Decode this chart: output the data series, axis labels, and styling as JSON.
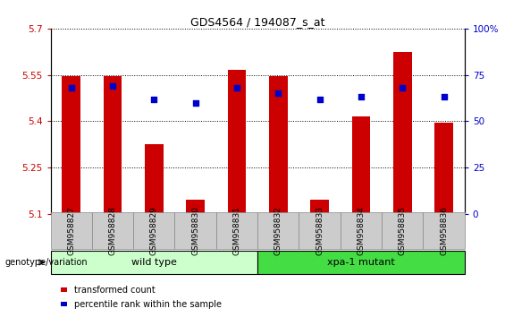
{
  "title": "GDS4564 / 194087_s_at",
  "samples": [
    "GSM958827",
    "GSM958828",
    "GSM958829",
    "GSM958830",
    "GSM958831",
    "GSM958832",
    "GSM958833",
    "GSM958834",
    "GSM958835",
    "GSM958836"
  ],
  "transformed_count": [
    5.545,
    5.545,
    5.325,
    5.145,
    5.565,
    5.545,
    5.145,
    5.415,
    5.625,
    5.395
  ],
  "percentile_rank": [
    68,
    69,
    62,
    60,
    68,
    65,
    62,
    63,
    68,
    63
  ],
  "ylim_left": [
    5.1,
    5.7
  ],
  "ylim_right": [
    0,
    100
  ],
  "yticks_left": [
    5.1,
    5.25,
    5.4,
    5.55,
    5.7
  ],
  "yticks_right": [
    0,
    25,
    50,
    75,
    100
  ],
  "ytick_labels_left": [
    "5.1",
    "5.25",
    "5.4",
    "5.55",
    "5.7"
  ],
  "ytick_labels_right": [
    "0",
    "25",
    "50",
    "75",
    "100%"
  ],
  "bar_color": "#cc0000",
  "dot_color": "#0000cc",
  "bar_bottom": 5.1,
  "dot_size": 22,
  "groups": [
    {
      "label": "wild type",
      "start": 0,
      "end": 5,
      "color": "#ccffcc"
    },
    {
      "label": "xpa-1 mutant",
      "start": 5,
      "end": 10,
      "color": "#44dd44"
    }
  ],
  "group_row_label": "genotype/variation",
  "legend_items": [
    {
      "color": "#cc0000",
      "label": "transformed count"
    },
    {
      "color": "#0000cc",
      "label": "percentile rank within the sample"
    }
  ],
  "bg_color": "#ffffff",
  "tick_color_left": "#cc0000",
  "tick_color_right": "#0000cc",
  "bar_width": 0.45,
  "label_box_color": "#cccccc",
  "label_box_edge": "#888888"
}
